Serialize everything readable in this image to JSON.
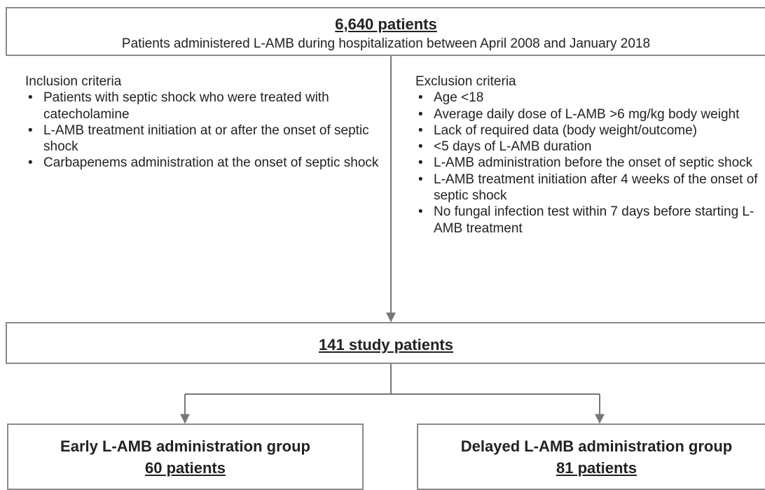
{
  "top_box": {
    "title": "6,640 patients",
    "subtitle": "Patients administered L-AMB during hospitalization between April 2008 and January 2018"
  },
  "inclusion": {
    "heading": "Inclusion criteria",
    "items": [
      "Patients with septic shock who were treated with catecholamine",
      "L-AMB treatment initiation at or after the onset of septic shock",
      "Carbapenems administration at the onset of septic shock"
    ]
  },
  "exclusion": {
    "heading": "Exclusion criteria",
    "items": [
      "Age <18",
      "Average daily dose of L-AMB >6 mg/kg body weight",
      "Lack of required data (body weight/outcome)",
      "<5 days of L-AMB duration",
      "L-AMB administration before the onset of septic shock",
      "L-AMB treatment initiation after 4 weeks of the onset of septic shock",
      "No fungal infection test within 7 days before starting L-AMB treatment"
    ]
  },
  "study_box": {
    "title": "141 study patients"
  },
  "groups": [
    {
      "name": "Early L-AMB administration group",
      "count": "60 patients"
    },
    {
      "name": "Delayed L-AMB administration group",
      "count": "81 patients"
    }
  ]
}
